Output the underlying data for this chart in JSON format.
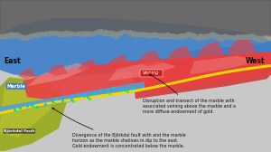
{
  "bg_color": "#c8c8c8",
  "east_label": "East",
  "west_label": "West",
  "marble_label": "Marble",
  "bjorkdal_fault_label": "Björkdal Fault",
  "veining_label": "Veining",
  "annotation1_text": "Disruption and transect of the marble with\nassociated veining above the marble and a\nmore diffuse endowment of gold.",
  "annotation2_text": "Divergence of the Björkdal fault with and the marble\nhorizon as the marble shallows in dip to the east.\nGold endowment is concentrated below the marble.",
  "colors": {
    "red": "#d93030",
    "red2": "#e84040",
    "blue_main": "#3a7dc9",
    "blue_light": "#6ab0e8",
    "yellow_fault": "#f0d800",
    "orange_fault": "#e06000",
    "olive": "#9aaa20",
    "olive2": "#b8c030",
    "pink": "#f09090",
    "topo_dark": "#707070",
    "topo_light": "#a0a080",
    "marble_blue": "#50a0d8",
    "veining_box": "#cc2020",
    "cyan_dot": "#00d0d0",
    "green_dot": "#60e020"
  }
}
